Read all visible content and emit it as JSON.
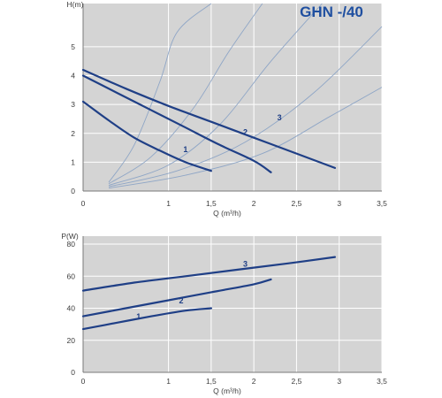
{
  "chart_data": [
    {
      "type": "line",
      "title": "GHN -/40",
      "xlabel": "Q (m³/h)",
      "ylabel": "H(m)",
      "xlim": [
        0,
        3.5
      ],
      "ylim": [
        0,
        6.5
      ],
      "grid": true,
      "x_ticks": [
        "0",
        "1",
        "1,5",
        "2",
        "2,5",
        "3",
        "3,5"
      ],
      "x_tick_values": [
        0,
        1,
        1.5,
        2,
        2.5,
        3,
        3.5
      ],
      "y_ticks": [
        "0",
        "1",
        "2",
        "3",
        "4",
        "5"
      ],
      "y_tick_values": [
        0,
        1,
        2,
        3,
        4,
        5
      ],
      "series": [
        {
          "name": "1",
          "color": "#1f3f86",
          "x": [
            0,
            0.3,
            0.6,
            0.9,
            1.2,
            1.5
          ],
          "y": [
            3.1,
            2.45,
            1.85,
            1.4,
            1.0,
            0.7
          ]
        },
        {
          "name": "2",
          "color": "#1f3f86",
          "x": [
            0,
            0.4,
            0.8,
            1.2,
            1.6,
            2.0,
            2.2
          ],
          "y": [
            4.0,
            3.4,
            2.8,
            2.2,
            1.6,
            1.05,
            0.65
          ]
        },
        {
          "name": "3",
          "color": "#1f3f86",
          "x": [
            0,
            0.5,
            1.0,
            1.5,
            2.0,
            2.5,
            2.95
          ],
          "y": [
            4.2,
            3.55,
            2.95,
            2.4,
            1.85,
            1.3,
            0.8
          ]
        }
      ],
      "label_points": [
        {
          "text": "1",
          "x": 1.2,
          "y": 1.35
        },
        {
          "text": "2",
          "x": 1.9,
          "y": 1.95
        },
        {
          "text": "3",
          "x": 2.3,
          "y": 2.45
        }
      ],
      "system_curves": [
        {
          "color": "#8fa6c6",
          "x": [
            0.3,
            0.6,
            0.9,
            1.1,
            1.5
          ],
          "y": [
            0.3,
            1.6,
            3.8,
            5.5,
            6.5
          ]
        },
        {
          "color": "#8fa6c6",
          "x": [
            0.3,
            0.8,
            1.3,
            1.7,
            2.1
          ],
          "y": [
            0.25,
            1.2,
            2.9,
            4.8,
            6.5
          ]
        },
        {
          "color": "#8fa6c6",
          "x": [
            0.3,
            1.0,
            1.6,
            2.2,
            2.8
          ],
          "y": [
            0.2,
            0.9,
            2.3,
            4.5,
            6.5
          ]
        },
        {
          "color": "#8fa6c6",
          "x": [
            0.3,
            1.1,
            1.9,
            2.7,
            3.5
          ],
          "y": [
            0.15,
            0.7,
            1.7,
            3.4,
            5.7
          ]
        },
        {
          "color": "#8fa6c6",
          "x": [
            0.3,
            1.2,
            2.1,
            2.9,
            3.5
          ],
          "y": [
            0.1,
            0.55,
            1.3,
            2.6,
            3.6
          ]
        }
      ]
    },
    {
      "type": "line",
      "title": "",
      "xlabel": "Q (m³/h)",
      "ylabel": "P(W)",
      "xlim": [
        0,
        3.5
      ],
      "ylim": [
        0,
        85
      ],
      "grid": true,
      "x_ticks": [
        "0",
        "1",
        "1,5",
        "2",
        "2,5",
        "3",
        "3,5"
      ],
      "x_tick_values": [
        0,
        1,
        1.5,
        2,
        2.5,
        3,
        3.5
      ],
      "y_ticks": [
        "0",
        "20",
        "40",
        "60",
        "80"
      ],
      "y_tick_values": [
        0,
        20,
        40,
        60,
        80
      ],
      "series": [
        {
          "name": "1",
          "color": "#1f3f86",
          "x": [
            0,
            0.4,
            0.8,
            1.2,
            1.5
          ],
          "y": [
            27,
            31,
            35,
            38.5,
            40
          ]
        },
        {
          "name": "2",
          "color": "#1f3f86",
          "x": [
            0,
            0.5,
            1.0,
            1.5,
            2.0,
            2.2
          ],
          "y": [
            35,
            40,
            45,
            50,
            55,
            58
          ]
        },
        {
          "name": "3",
          "color": "#1f3f86",
          "x": [
            0,
            0.6,
            1.2,
            1.8,
            2.4,
            2.95
          ],
          "y": [
            51,
            56,
            60,
            64,
            68,
            72
          ]
        }
      ],
      "label_points": [
        {
          "text": "1",
          "x": 0.65,
          "y": 33
        },
        {
          "text": "2",
          "x": 1.15,
          "y": 43
        },
        {
          "text": "3",
          "x": 1.9,
          "y": 66
        }
      ]
    }
  ]
}
